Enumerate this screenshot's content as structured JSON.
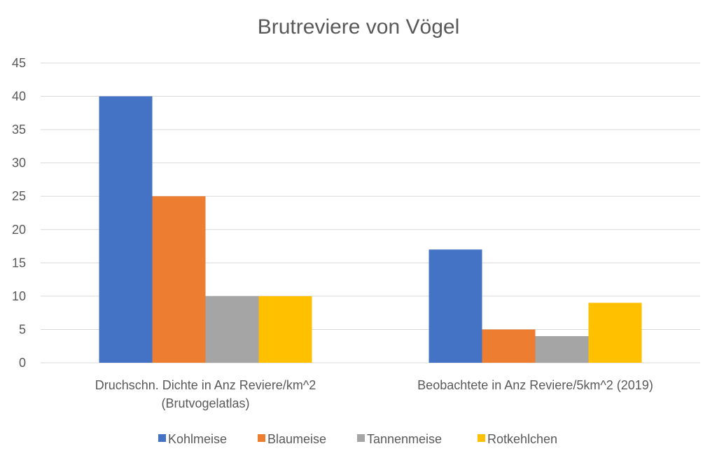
{
  "chart_data": {
    "type": "bar",
    "title": "Brutreviere von Vögel",
    "xlabel": "",
    "ylabel": "",
    "ylim": [
      0,
      45
    ],
    "yticks": [
      0,
      5,
      10,
      15,
      20,
      25,
      30,
      35,
      40,
      45
    ],
    "grid": true,
    "legend_position": "bottom",
    "categories": [
      [
        "Druchschn. Dichte in Anz Reviere/km^2",
        "(Brutvogelatlas)"
      ],
      [
        "Beobachtete in Anz Reviere/5km^2 (2019)"
      ]
    ],
    "series": [
      {
        "name": "Kohlmeise",
        "color": "#4472c4",
        "values": [
          40,
          17
        ]
      },
      {
        "name": "Blaumeise",
        "color": "#ed7d31",
        "values": [
          25,
          5
        ]
      },
      {
        "name": "Tannenmeise",
        "color": "#a5a5a5",
        "values": [
          10,
          4
        ]
      },
      {
        "name": "Rotkehlchen",
        "color": "#ffc000",
        "values": [
          10,
          9
        ]
      }
    ]
  }
}
